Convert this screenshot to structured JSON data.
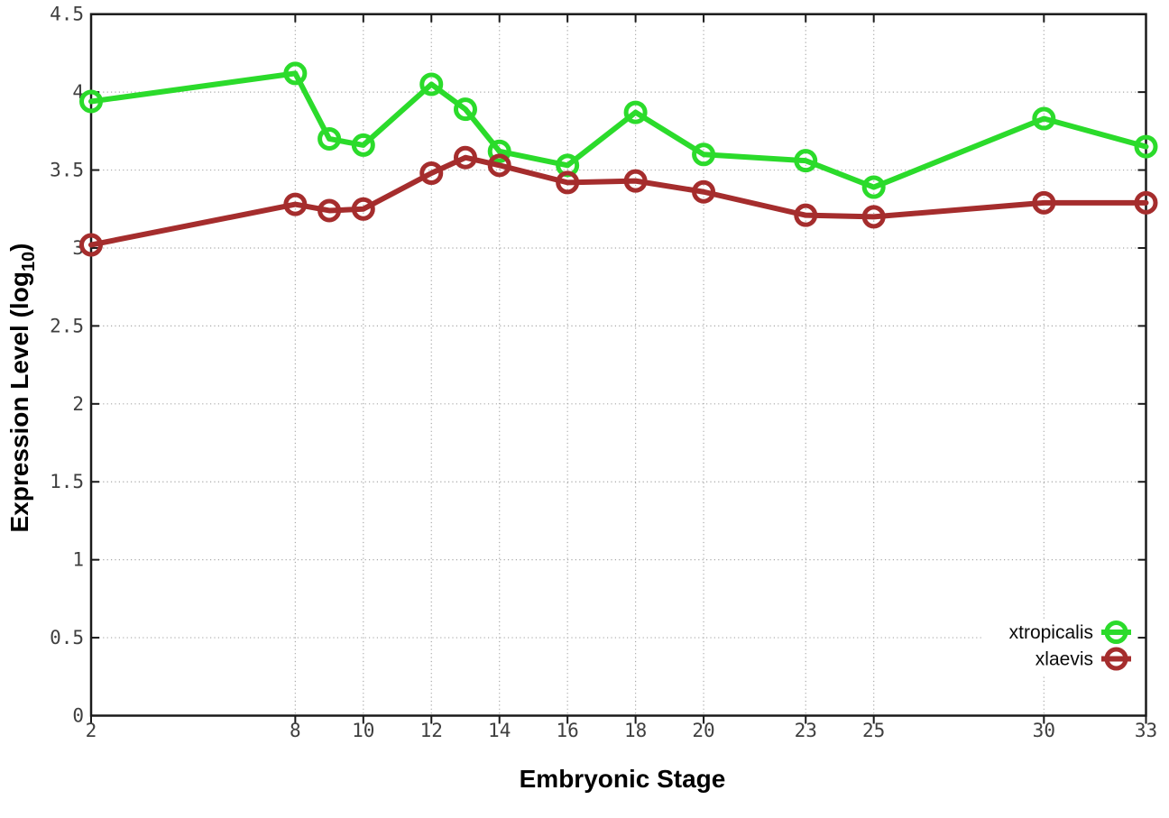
{
  "chart_data": {
    "type": "line",
    "title": "",
    "xlabel": "Embryonic Stage",
    "ylabel": "Expression Level (log10)",
    "ylabel_parts": {
      "main": "Expression Level (log",
      "sub": "10",
      "close": ")"
    },
    "xlim": [
      2,
      33
    ],
    "ylim": [
      0,
      4.5
    ],
    "x_ticks": [
      2,
      8,
      10,
      12,
      14,
      16,
      18,
      20,
      23,
      25,
      30,
      33
    ],
    "y_ticks": [
      0,
      0.5,
      1,
      1.5,
      2,
      2.5,
      3,
      3.5,
      4,
      4.5
    ],
    "y_tick_labels": [
      "0",
      "0.5",
      "1",
      "1.5",
      "2",
      "2.5",
      "3",
      "3.5",
      "4",
      "4.5"
    ],
    "grid": true,
    "grid_style": "dotted",
    "legend_position": "bottom-right",
    "x": [
      2,
      8,
      9,
      10,
      12,
      13,
      14,
      16,
      18,
      20,
      23,
      25,
      30,
      33
    ],
    "series": [
      {
        "name": "xtropicalis",
        "color": "#2bdb2b",
        "values": [
          3.94,
          4.12,
          3.7,
          3.66,
          4.05,
          3.89,
          3.62,
          3.53,
          3.87,
          3.6,
          3.56,
          3.39,
          3.83,
          3.65
        ]
      },
      {
        "name": "xlaevis",
        "color": "#a52d2d",
        "values": [
          3.02,
          3.28,
          3.24,
          3.25,
          3.48,
          3.58,
          3.53,
          3.42,
          3.43,
          3.36,
          3.21,
          3.2,
          3.29,
          3.29
        ]
      }
    ]
  },
  "style": {
    "frame_color": "#1a1a1a",
    "grid_color": "#a8a8a8",
    "background": "#ffffff"
  }
}
